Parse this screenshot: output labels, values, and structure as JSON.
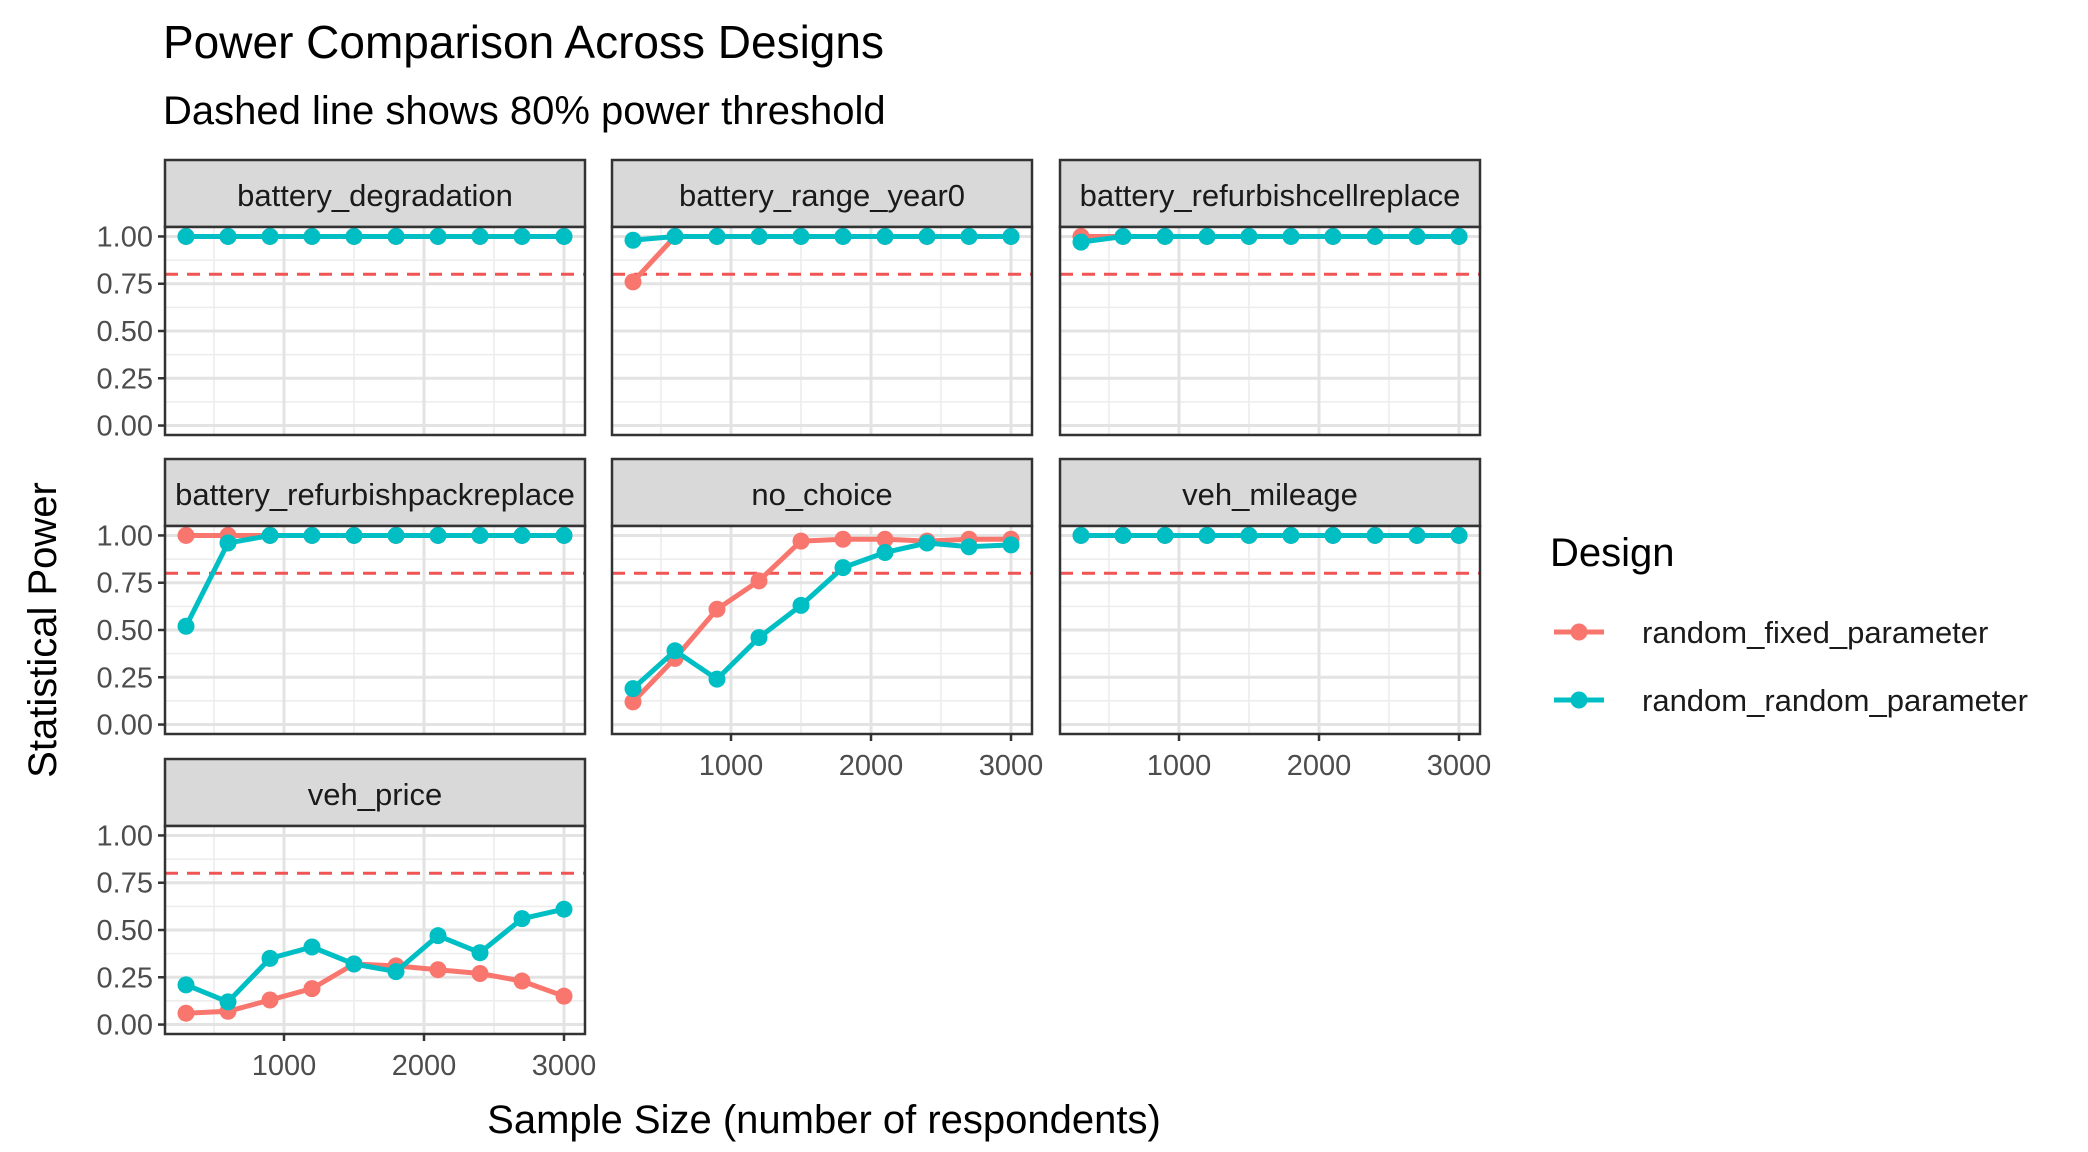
{
  "chart_data": {
    "type": "line",
    "title": "Power Comparison Across Designs",
    "subtitle": "Dashed line shows 80% power threshold",
    "xlabel": "Sample Size (number of respondents)",
    "ylabel": "Statistical Power",
    "xlim": [
      150,
      3150
    ],
    "ylim": [
      -0.05,
      1.05
    ],
    "x_ticks": [
      1000,
      2000,
      3000
    ],
    "x_tick_labels": [
      "1000",
      "2000",
      "3000"
    ],
    "y_ticks": [
      0,
      0.25,
      0.5,
      0.75,
      1.0
    ],
    "y_tick_labels": [
      "0.00",
      "0.25",
      "0.50",
      "0.75",
      "1.00"
    ],
    "threshold": 0.8,
    "threshold_color": "#f05454",
    "grid": true,
    "legend_position": "right",
    "legend": {
      "title": "Design",
      "entries": [
        {
          "name": "random_fixed_parameter",
          "color": "#f8766d"
        },
        {
          "name": "random_random_parameter",
          "color": "#00bfc4"
        }
      ]
    },
    "x": [
      300,
      600,
      900,
      1200,
      1500,
      1800,
      2100,
      2400,
      2700,
      3000
    ],
    "panels": [
      {
        "name": "battery_degradation",
        "series": [
          {
            "name": "random_fixed_parameter",
            "values": [
              1,
              1,
              1,
              1,
              1,
              1,
              1,
              1,
              1,
              1
            ]
          },
          {
            "name": "random_random_parameter",
            "values": [
              1,
              1,
              1,
              1,
              1,
              1,
              1,
              1,
              1,
              1
            ]
          }
        ]
      },
      {
        "name": "battery_range_year0",
        "series": [
          {
            "name": "random_fixed_parameter",
            "values": [
              0.76,
              1,
              1,
              1,
              1,
              1,
              1,
              1,
              1,
              1
            ]
          },
          {
            "name": "random_random_parameter",
            "values": [
              0.98,
              1,
              1,
              1,
              1,
              1,
              1,
              1,
              1,
              1
            ]
          }
        ]
      },
      {
        "name": "battery_refurbishcellreplace",
        "series": [
          {
            "name": "random_fixed_parameter",
            "values": [
              1,
              1,
              1,
              1,
              1,
              1,
              1,
              1,
              1,
              1
            ]
          },
          {
            "name": "random_random_parameter",
            "values": [
              0.97,
              1,
              1,
              1,
              1,
              1,
              1,
              1,
              1,
              1
            ]
          }
        ]
      },
      {
        "name": "battery_refurbishpackreplace",
        "series": [
          {
            "name": "random_fixed_parameter",
            "values": [
              1,
              1,
              1,
              1,
              1,
              1,
              1,
              1,
              1,
              1
            ]
          },
          {
            "name": "random_random_parameter",
            "values": [
              0.52,
              0.96,
              1,
              1,
              1,
              1,
              1,
              1,
              1,
              1
            ]
          }
        ]
      },
      {
        "name": "no_choice",
        "series": [
          {
            "name": "random_fixed_parameter",
            "values": [
              0.12,
              0.35,
              0.61,
              0.76,
              0.97,
              0.98,
              0.98,
              0.97,
              0.98,
              0.98
            ]
          },
          {
            "name": "random_random_parameter",
            "values": [
              0.19,
              0.39,
              0.24,
              0.46,
              0.63,
              0.83,
              0.91,
              0.96,
              0.94,
              0.95
            ]
          }
        ]
      },
      {
        "name": "veh_mileage",
        "series": [
          {
            "name": "random_fixed_parameter",
            "values": [
              1,
              1,
              1,
              1,
              1,
              1,
              1,
              1,
              1,
              1
            ]
          },
          {
            "name": "random_random_parameter",
            "values": [
              1,
              1,
              1,
              1,
              1,
              1,
              1,
              1,
              1,
              1
            ]
          }
        ]
      },
      {
        "name": "veh_price",
        "series": [
          {
            "name": "random_fixed_parameter",
            "values": [
              0.06,
              0.07,
              0.13,
              0.19,
              0.32,
              0.31,
              0.29,
              0.27,
              0.23,
              0.15
            ]
          },
          {
            "name": "random_random_parameter",
            "values": [
              0.21,
              0.12,
              0.35,
              0.41,
              0.32,
              0.28,
              0.47,
              0.38,
              0.56,
              0.61
            ]
          }
        ]
      }
    ]
  }
}
